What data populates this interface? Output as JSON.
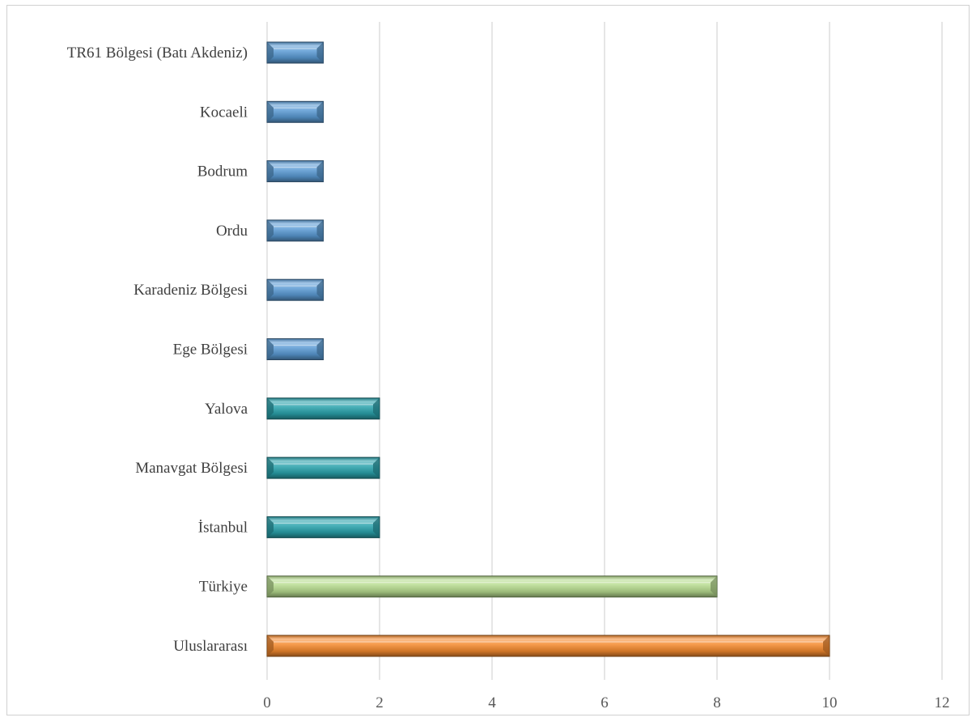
{
  "chart_data": {
    "type": "bar",
    "orientation": "horizontal",
    "title": "",
    "xlabel": "",
    "ylabel": "",
    "xlim": [
      0,
      12
    ],
    "x_ticks": [
      0,
      2,
      4,
      6,
      8,
      10,
      12
    ],
    "grid": "vertical",
    "legend": "none",
    "categories": [
      "TR61 Bölgesi (Batı Akdeniz)",
      "Kocaeli",
      "Bodrum",
      "Ordu",
      "Karadeniz Bölgesi",
      "Ege Bölgesi",
      "Yalova",
      "Manavgat Bölgesi",
      "İstanbul",
      "Türkiye",
      "Uluslararası"
    ],
    "values": [
      1,
      1,
      1,
      1,
      1,
      1,
      2,
      2,
      2,
      8,
      10
    ],
    "bar_colors": [
      "#5b9bd5",
      "#5b9bd5",
      "#5b9bd5",
      "#5b9bd5",
      "#5b9bd5",
      "#5b9bd5",
      "#2aa3ad",
      "#2aa3ad",
      "#2aa3ad",
      "#b7dc8f",
      "#f58b2f"
    ]
  }
}
